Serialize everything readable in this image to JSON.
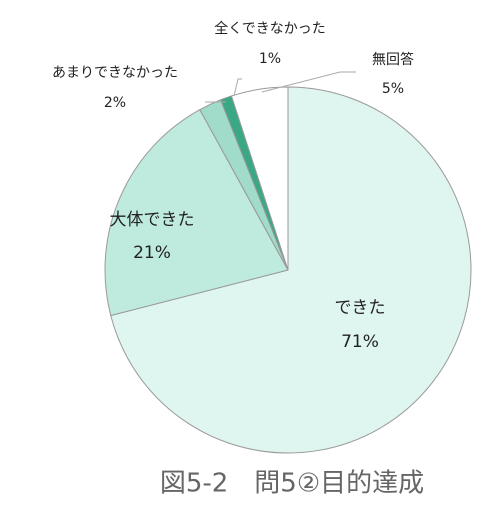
{
  "chart_data": {
    "type": "pie",
    "title": "図5-2　問5②目的達成",
    "categories": [
      "できた",
      "大体できた",
      "あまりできなかった",
      "全くできなかった",
      "無回答"
    ],
    "values": [
      71,
      21,
      2,
      1,
      5
    ],
    "value_labels": [
      "71%",
      "21%",
      "2%",
      "1%",
      "5%"
    ],
    "colors": [
      "#dff5ef",
      "#bfeade",
      "#a0dcc9",
      "#3aa785",
      "#ffffff"
    ]
  }
}
